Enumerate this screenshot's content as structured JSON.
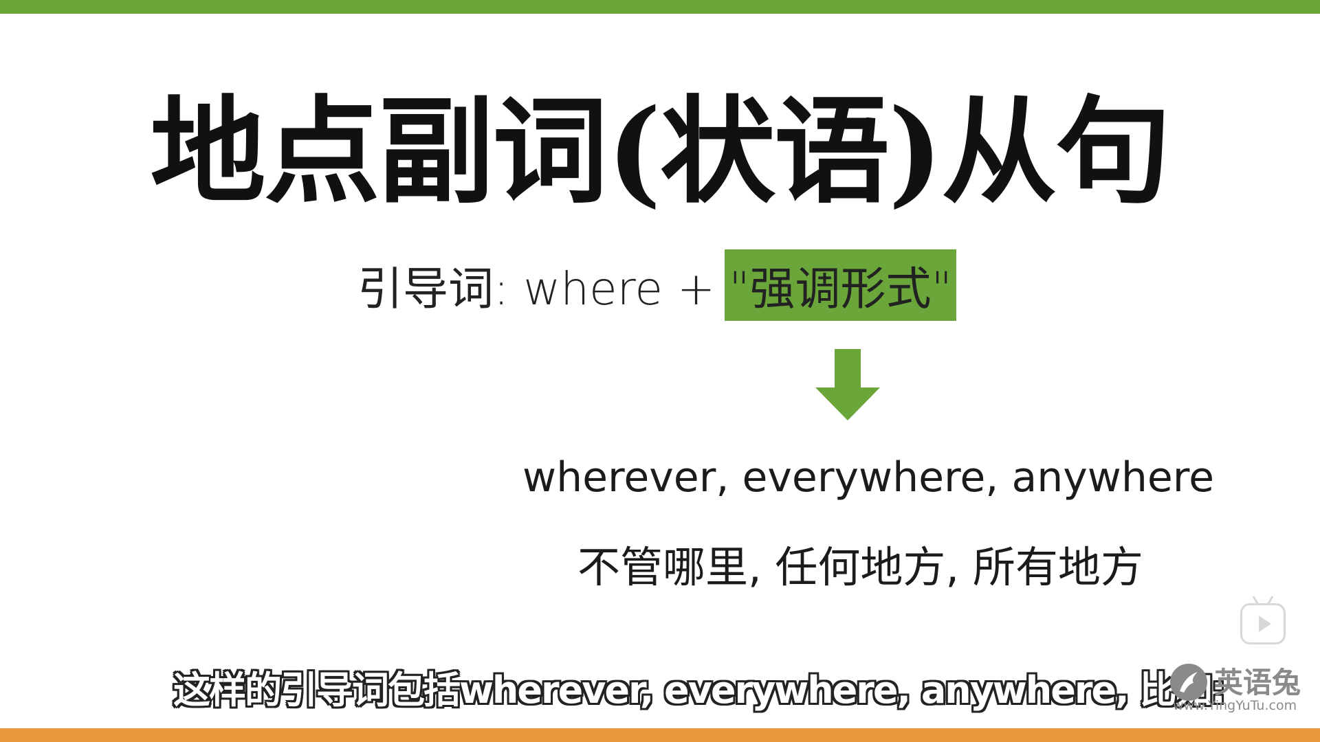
{
  "colors": {
    "accent_green": "#6aa639",
    "accent_orange": "#e8983a",
    "text": "#111111",
    "watermark_gray": "#8a8a8a"
  },
  "slide": {
    "title": "地点副词(状语)从句",
    "subtitle_prefix": "引导词: where + ",
    "subtitle_highlight": "\"强调形式\"",
    "arrow_icon": "arrow-down-icon",
    "words_en": "wherever, everywhere, anywhere",
    "words_zh": "不管哪里, 任何地方, 所有地方"
  },
  "caption": "这样的引导词包括wherever, everywhere, anywhere, 比如:",
  "watermark": {
    "icon": "rabbit-logo-icon",
    "name": "英语兔",
    "url": "www.YingYuTu.com"
  },
  "player": {
    "icon": "play-icon"
  }
}
